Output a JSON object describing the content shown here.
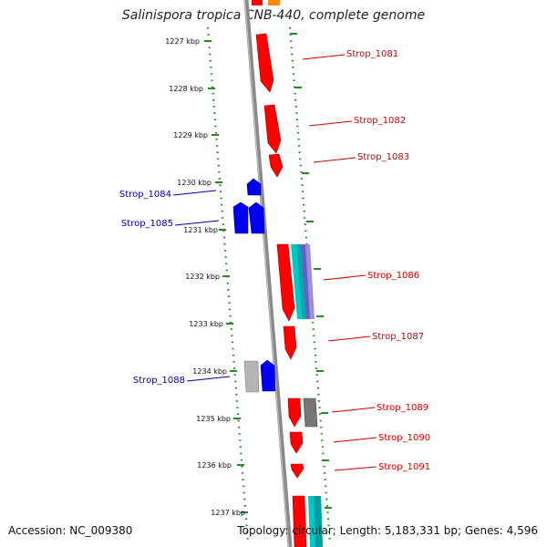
{
  "title": "Salinispora tropica CNB-440, complete genome",
  "accession": "Accession: NC_009380",
  "topology": "Topology: circular; Length: 5,183,331 bp; Genes: 4,596",
  "ticks": [
    "1227 kbp",
    "1228 kbp",
    "1229 kbp",
    "1230 kbp",
    "1231 kbp",
    "1232 kbp",
    "1233 kbp",
    "1234 kbp",
    "1235 kbp",
    "1236 kbp",
    "1237 kbp"
  ],
  "genes": [
    {
      "name": "Strop_1081",
      "strand": "forward"
    },
    {
      "name": "Strop_1082",
      "strand": "forward"
    },
    {
      "name": "Strop_1083",
      "strand": "forward"
    },
    {
      "name": "Strop_1084",
      "strand": "reverse"
    },
    {
      "name": "Strop_1085",
      "strand": "reverse"
    },
    {
      "name": "Strop_1086",
      "strand": "forward"
    },
    {
      "name": "Strop_1087",
      "strand": "forward"
    },
    {
      "name": "Strop_1088",
      "strand": "reverse"
    },
    {
      "name": "Strop_1089",
      "strand": "forward"
    },
    {
      "name": "Strop_1090",
      "strand": "forward"
    },
    {
      "name": "Strop_1091",
      "strand": "forward"
    }
  ],
  "colors": {
    "forward_gene": "#ff0000",
    "reverse_gene": "#0000ee",
    "forward_label": "#cc0000",
    "reverse_label": "#0000aa",
    "backbone": "#888888",
    "gc_dots": "#228b22",
    "cyan_feature": "#00c8c8",
    "purple_feature": "#8a6fbf",
    "gray_feature": "#777777"
  }
}
